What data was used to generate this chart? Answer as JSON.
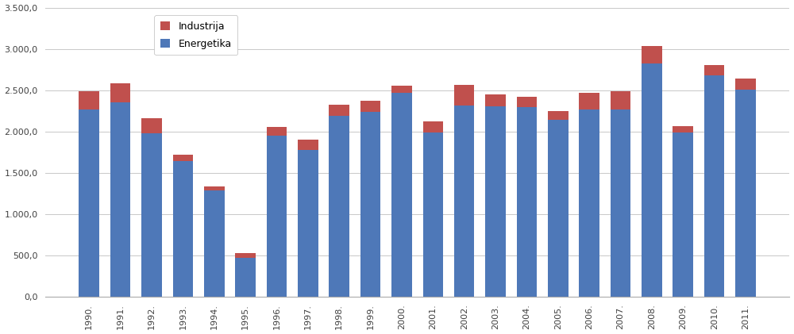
{
  "years": [
    "1990.",
    "1991.",
    "1992.",
    "1993.",
    "1994.",
    "1995.",
    "1996.",
    "1997.",
    "1998.",
    "1999.",
    "2000.",
    "2001.",
    "2002.",
    "2003.",
    "2004.",
    "2005.",
    "2006.",
    "2007.",
    "2008.",
    "2009.",
    "2010.",
    "2011."
  ],
  "energetika": [
    2270,
    2350,
    1980,
    1640,
    1290,
    470,
    1950,
    1775,
    2190,
    2240,
    2470,
    1990,
    2310,
    2300,
    2290,
    2140,
    2270,
    2270,
    2820,
    1990,
    2680,
    2510
  ],
  "industrija": [
    220,
    230,
    175,
    75,
    40,
    55,
    100,
    130,
    130,
    130,
    80,
    135,
    250,
    150,
    130,
    105,
    200,
    215,
    215,
    70,
    120,
    130
  ],
  "bar_color_energetika": "#4E78B8",
  "bar_color_industrija": "#C0504D",
  "legend_labels": [
    "Industrija",
    "Energetika"
  ],
  "ylim": [
    0,
    3500
  ],
  "yticks": [
    0,
    500,
    1000,
    1500,
    2000,
    2500,
    3000,
    3500
  ],
  "background_color": "#FFFFFF",
  "grid_color": "#C8C8C8",
  "bar_width": 0.65
}
